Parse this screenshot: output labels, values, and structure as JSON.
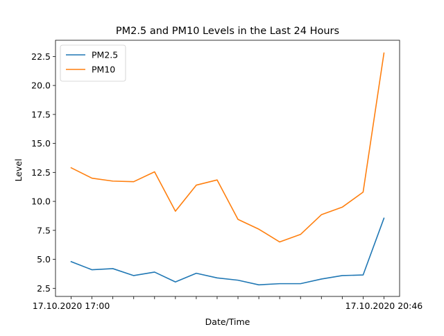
{
  "chart_data": {
    "type": "line",
    "title": "PM2.5 and PM10 Levels in the Last 24 Hours",
    "xlabel": "Date/Time",
    "ylabel": "Level",
    "x_tick_labels": [
      {
        "index": 0,
        "label": "17.10.2020 17:00"
      },
      {
        "index": 15,
        "label": "17.10.2020 20:46"
      }
    ],
    "x_count": 16,
    "xlim": [
      -0.75,
      15.75
    ],
    "ylim": [
      1.8,
      23.9
    ],
    "yticks": [
      2.5,
      5.0,
      7.5,
      10.0,
      12.5,
      15.0,
      17.5,
      20.0,
      22.5
    ],
    "ytick_labels": [
      "2.5",
      "5.0",
      "7.5",
      "10.0",
      "12.5",
      "15.0",
      "17.5",
      "20.0",
      "22.5"
    ],
    "legend_position": "top-left",
    "grid": false,
    "series": [
      {
        "name": "PM2.5",
        "color": "#1f77b4",
        "values": [
          4.8,
          4.1,
          4.2,
          3.6,
          3.9,
          3.05,
          3.8,
          3.4,
          3.2,
          2.8,
          2.9,
          2.9,
          3.3,
          3.6,
          3.65,
          8.55
        ]
      },
      {
        "name": "PM10",
        "color": "#ff7f0e",
        "values": [
          12.9,
          12.0,
          11.75,
          11.7,
          12.55,
          9.15,
          11.4,
          11.85,
          8.45,
          7.6,
          6.5,
          7.15,
          8.85,
          9.5,
          10.8,
          22.8
        ]
      }
    ]
  }
}
